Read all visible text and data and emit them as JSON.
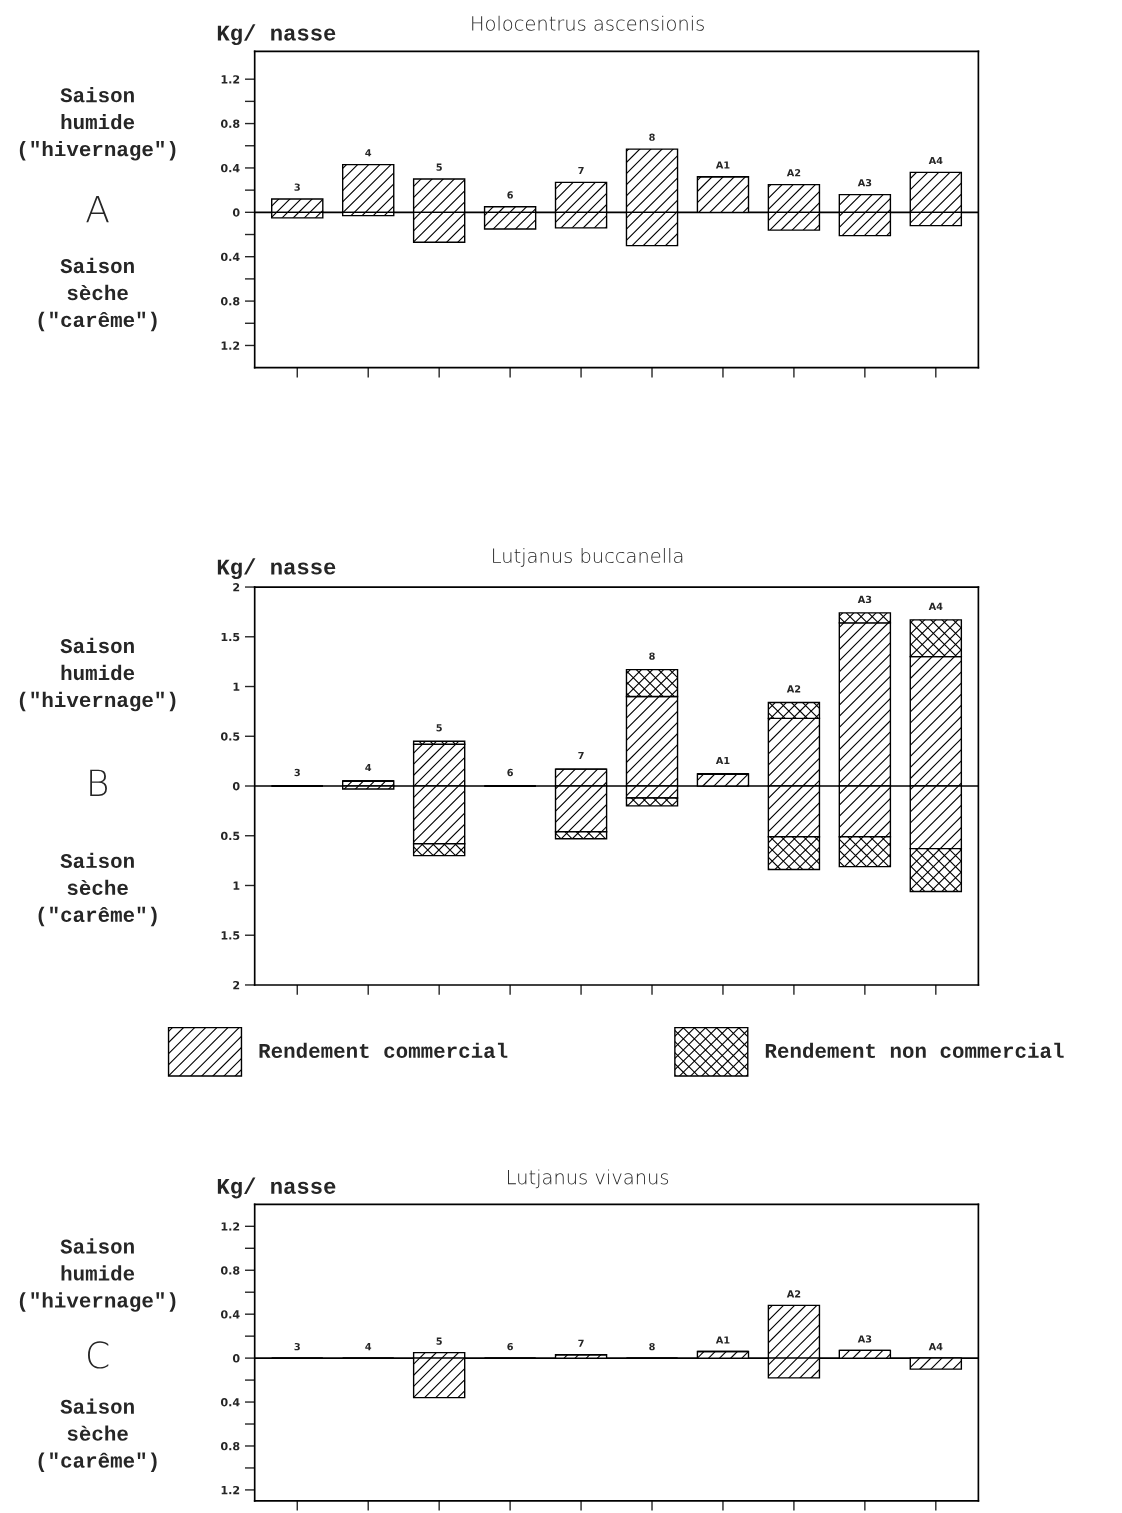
{
  "chart_data": [
    {
      "type": "bar",
      "title": "Holocentrus ascensionis",
      "ylabel": "Kg/ nasse",
      "stacked": true,
      "tick_labels": "y",
      "grid": false,
      "legend": false,
      "annotations": [
        "Saison\nhumide\n(\"hivernage\")",
        "A",
        "Saison\nsèche\n(\"carême\")"
      ],
      "categories": [
        "3",
        "4",
        "5",
        "6",
        "7",
        "8",
        "A1",
        "A2",
        "A3",
        "A4"
      ],
      "series": [
        {
          "color": "#000000",
          "values": [
            0.12,
            0.43,
            0.3,
            0.05,
            0.27,
            0.57,
            0.32,
            0.25,
            0.16,
            0.36
          ]
        },
        {
          "color": "#000000",
          "values": [
            -0.05,
            -0.03,
            -0.27,
            -0.15,
            -0.14,
            -0.3,
            0,
            -0.16,
            -0.21,
            -0.12
          ]
        }
      ],
      "ylim": [
        -1.4,
        1.45
      ],
      "yticks": [
        1.2,
        {
          "value": 1.0,
          "label": null
        },
        0.8,
        {
          "value": 0.6,
          "label": null
        },
        0.4,
        {
          "value": 0.2,
          "label": null
        },
        0,
        {
          "value": -0.2,
          "label": null
        },
        {
          "value": -0.4,
          "label": "0.4"
        },
        {
          "value": -0.6,
          "label": null
        },
        {
          "value": -0.8,
          "label": "0.8"
        },
        {
          "value": -1.0,
          "label": null
        },
        {
          "value": -1.2,
          "label": "1.2"
        }
      ],
      "ref_lines": [
        {
          "axis": "y",
          "value": 0,
          "color": "#000000"
        }
      ]
    },
    {
      "type": "bar",
      "title": "Lutjanus buccanella",
      "ylabel": "Kg/ nasse",
      "stacked": true,
      "tick_labels": "y",
      "grid": false,
      "legend": "bottom",
      "annotations": [
        "Saison\nhumide\n(\"hivernage\")",
        "B",
        "Saison\nsèche\n(\"carême\")"
      ],
      "categories": [
        "3",
        "4",
        "5",
        "6",
        "7",
        "8",
        "A1",
        "A2",
        "A3",
        "A4"
      ],
      "series": [
        {
          "name": "Rendement commercial",
          "color": "#000000",
          "values": [
            0,
            0.05,
            0.42,
            0,
            0.17,
            0.9,
            0.12,
            0.68,
            1.64,
            1.3
          ]
        },
        {
          "color": "#000000",
          "values": [
            0,
            -0.03,
            -0.58,
            0,
            -0.46,
            -0.12,
            0,
            -0.51,
            -0.51,
            -0.63
          ]
        },
        {
          "name": "Rendement non commercial",
          "color": "#000000",
          "values": [
            0,
            0,
            0.03,
            0,
            0,
            0.27,
            0,
            0.16,
            0.1,
            0.37
          ]
        },
        {
          "color": "#000000",
          "values": [
            0,
            0,
            -0.12,
            0,
            -0.07,
            -0.08,
            0,
            -0.33,
            -0.3,
            -0.43
          ]
        }
      ],
      "ylim": [
        -2,
        2
      ],
      "yticks": [
        2,
        1.5,
        1,
        0.5,
        0,
        {
          "value": -0.5,
          "label": "0.5"
        },
        {
          "value": -1,
          "label": "1"
        },
        {
          "value": -1.5,
          "label": "1.5"
        },
        {
          "value": -2,
          "label": "2"
        }
      ],
      "ref_lines": [
        {
          "axis": "y",
          "value": 0,
          "color": "#000000"
        }
      ]
    },
    {
      "type": "bar",
      "title": "Lutjanus vivanus",
      "ylabel": "Kg/ nasse",
      "stacked": true,
      "tick_labels": "y",
      "grid": false,
      "legend": false,
      "annotations": [
        "Saison\nhumide\n(\"hivernage\")",
        "C",
        "Saison\nsèche\n(\"carême\")"
      ],
      "categories": [
        "3",
        "4",
        "5",
        "6",
        "7",
        "8",
        "A1",
        "A2",
        "A3",
        "A4"
      ],
      "series": [
        {
          "color": "#000000",
          "values": [
            0,
            0,
            0.05,
            0,
            0.03,
            0,
            0.06,
            0.48,
            0.07,
            0
          ]
        },
        {
          "color": "#000000",
          "values": [
            0,
            0,
            -0.36,
            0,
            0,
            0,
            0,
            -0.18,
            0,
            -0.1
          ]
        }
      ],
      "ylim": [
        -1.3,
        1.4
      ],
      "yticks": [
        1.2,
        {
          "value": 1.0,
          "label": null
        },
        0.8,
        {
          "value": 0.6,
          "label": null
        },
        0.4,
        {
          "value": 0.2,
          "label": null
        },
        0,
        {
          "value": -0.2,
          "label": null
        },
        {
          "value": -0.4,
          "label": "0.4"
        },
        {
          "value": -0.6,
          "label": null
        },
        {
          "value": -0.8,
          "label": "0.8"
        },
        {
          "value": -1.0,
          "label": null
        },
        {
          "value": -1.2,
          "label": "1.2"
        }
      ],
      "ref_lines": [
        {
          "axis": "y",
          "value": 0,
          "color": "#000000"
        }
      ]
    }
  ]
}
